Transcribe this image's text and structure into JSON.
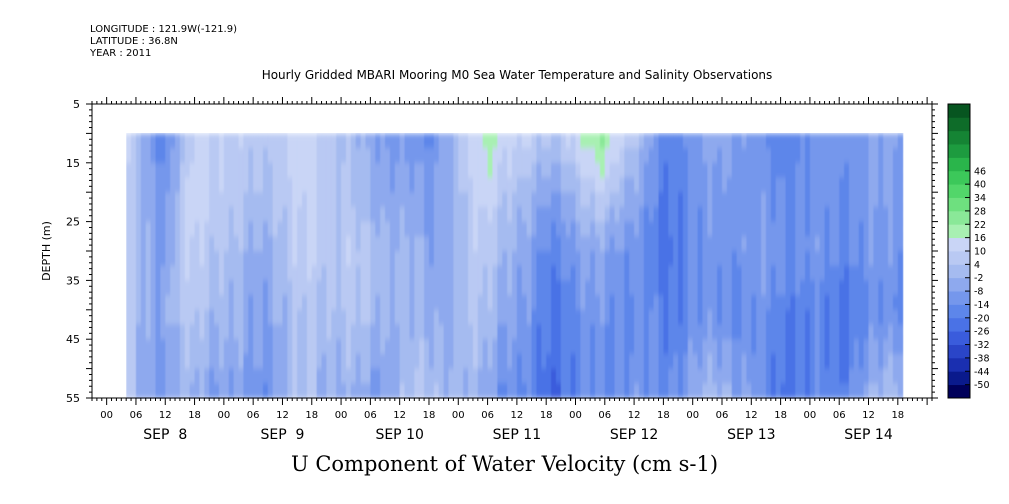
{
  "meta": {
    "longitude": "LONGITUDE : 121.9W(-121.9)",
    "latitude": "LATITUDE : 36.8N",
    "year": "YEAR : 2011"
  },
  "chart_data": {
    "type": "heatmap",
    "title": "Hourly Gridded MBARI Mooring M0 Sea Water Temperature and Salinity Observations",
    "bottom_title": "U Component of Water Velocity (cm s-1)",
    "ylabel": "DEPTH (m)",
    "yticks": [
      5,
      15,
      25,
      35,
      45,
      55
    ],
    "ylim": [
      55,
      5
    ],
    "data_depth_range": [
      10,
      55
    ],
    "xtick_hours": [
      "00",
      "06",
      "12",
      "18",
      "00",
      "06",
      "12",
      "18",
      "00",
      "06",
      "12",
      "18",
      "00",
      "06",
      "12",
      "18",
      "00",
      "06",
      "12",
      "18",
      "00",
      "06",
      "12",
      "18",
      "00",
      "06",
      "12",
      "18"
    ],
    "date_labels": [
      "SEP  8",
      "SEP  9",
      "SEP 10",
      "SEP 11",
      "SEP 12",
      "SEP 13",
      "SEP 14"
    ],
    "data_start_hour": 4,
    "data_end_hour": 163,
    "colorbar_levels": [
      -50,
      -44,
      -38,
      -32,
      -26,
      -20,
      -14,
      -8,
      -2,
      4,
      10,
      16,
      22,
      28,
      34,
      40,
      46
    ],
    "colorbar_colors": [
      "#00005a",
      "#0a1a8c",
      "#1a2fb0",
      "#2a45c8",
      "#3a5cdc",
      "#4a72e6",
      "#5d86ea",
      "#7597ec",
      "#8ea9ee",
      "#a5bbf0",
      "#b9c9f3",
      "#c9d5f6",
      "#a8f0b2",
      "#8ae898",
      "#6ee07f",
      "#52d66a",
      "#3cc85a",
      "#2ab54b",
      "#1d9b3f",
      "#158434",
      "#0e6c29",
      "#075520"
    ],
    "column_profiles_cm_s": [
      {
        "day": "SEP 8",
        "hour": "04",
        "values": [
          10,
          8,
          6,
          4,
          2
        ]
      },
      {
        "day": "SEP 8",
        "hour": "12",
        "values": [
          -18,
          -12,
          -8,
          -6,
          -10
        ]
      },
      {
        "day": "SEP 8",
        "hour": "18",
        "values": [
          12,
          14,
          12,
          8,
          -2
        ]
      },
      {
        "day": "SEP 9",
        "hour": "06",
        "values": [
          6,
          2,
          -4,
          -8,
          -12
        ]
      },
      {
        "day": "SEP 9",
        "hour": "18",
        "values": [
          14,
          12,
          10,
          6,
          2
        ]
      },
      {
        "day": "SEP 10",
        "hour": "06",
        "values": [
          -6,
          -2,
          4,
          2,
          -8
        ]
      },
      {
        "day": "SEP 10",
        "hour": "18",
        "values": [
          -14,
          -10,
          -6,
          -4,
          6
        ]
      },
      {
        "day": "SEP 11",
        "hour": "06",
        "values": [
          20,
          14,
          8,
          4,
          -6
        ]
      },
      {
        "day": "SEP 11",
        "hour": "18",
        "values": [
          4,
          -8,
          -16,
          -20,
          -24
        ]
      },
      {
        "day": "SEP 12",
        "hour": "06",
        "values": [
          24,
          10,
          -4,
          -10,
          -12
        ]
      },
      {
        "day": "SEP 12",
        "hour": "18",
        "values": [
          -16,
          -20,
          -22,
          -18,
          -14
        ]
      },
      {
        "day": "SEP 13",
        "hour": "06",
        "values": [
          -4,
          -8,
          -10,
          -12,
          2
        ]
      },
      {
        "day": "SEP 13",
        "hour": "18",
        "values": [
          -18,
          -14,
          -10,
          -16,
          -22
        ]
      },
      {
        "day": "SEP 14",
        "hour": "06",
        "values": [
          -10,
          -12,
          -14,
          -20,
          -16
        ]
      },
      {
        "day": "SEP 14",
        "hour": "18",
        "values": [
          -6,
          -8,
          -10,
          -12,
          4
        ]
      }
    ],
    "profile_depths_m": [
      10,
      20,
      30,
      40,
      55
    ]
  }
}
